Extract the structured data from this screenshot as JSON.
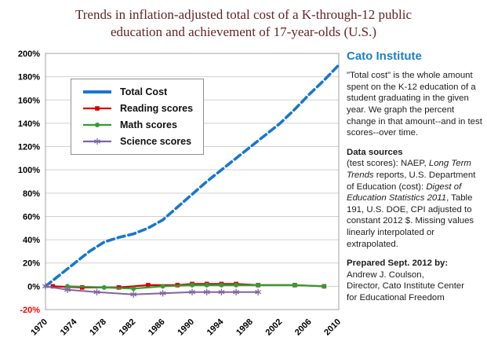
{
  "title": {
    "line1": "Trends in inflation-adjusted total cost of a K-through-12 public",
    "line2": "education and achievement of 17-year-olds  (U.S.)"
  },
  "sidebar": {
    "heading": "Cato Institute",
    "intro": "\"Total cost\" is the whole amount spent on the K-12 education of a student graduating in the given year. We graph the percent change in that amount--and in test scores--over time.",
    "data_sources_label": "Data sources",
    "data_sources_segments": [
      {
        "text": "(test scores): NAEP, ",
        "italic": false
      },
      {
        "text": "Long Term Trends",
        "italic": true
      },
      {
        "text": " reports, U.S. Department of Education (cost): ",
        "italic": false
      },
      {
        "text": "Digest of Education Statistics 2011",
        "italic": true
      },
      {
        "text": ", Table 191, U.S. DOE, CPI adjusted to constant 2012 $.  Missing values linearly interpolated or extrapolated.",
        "italic": false
      }
    ],
    "prepared_label": "Prepared Sept. 2012 by:",
    "prepared_lines": [
      "Andrew J. Coulson,",
      "Director, Cato Institute Center",
      "for Educational Freedom"
    ]
  },
  "chart_data": {
    "type": "line",
    "title": "Trends in inflation-adjusted total cost of a K-through-12 public education and achievement of 17-year-olds (U.S.)",
    "xlabel": "",
    "ylabel": "",
    "xlim": [
      1970,
      2010
    ],
    "ylim": [
      -20,
      200
    ],
    "x_ticks": [
      1970,
      1974,
      1978,
      1982,
      1986,
      1990,
      1994,
      1998,
      2002,
      2006,
      2010
    ],
    "y_ticks": [
      -20,
      0,
      20,
      40,
      60,
      80,
      100,
      120,
      140,
      160,
      180,
      200
    ],
    "y_tick_format": "percent",
    "grid": true,
    "legend_position": "upper-left",
    "negative_tick_color": "#ff0000",
    "series": [
      {
        "name": "Total Cost",
        "color": "#1876d2",
        "marker": "none",
        "dash": "9 5",
        "line_width": 3.6,
        "x": [
          1970,
          1972,
          1974,
          1976,
          1978,
          1980,
          1982,
          1984,
          1986,
          1988,
          1990,
          1992,
          1994,
          1996,
          1998,
          2000,
          2002,
          2004,
          2006,
          2008,
          2010
        ],
        "values": [
          0,
          10,
          20,
          30,
          38,
          42,
          45,
          50,
          57,
          68,
          79,
          90,
          100,
          110,
          120,
          130,
          140,
          152,
          165,
          177,
          190
        ]
      },
      {
        "name": "Reading scores",
        "color": "#d40000",
        "marker": "square",
        "dash": null,
        "line_width": 2.2,
        "x": [
          1971,
          1975,
          1980,
          1984,
          1988,
          1990,
          1992,
          1994,
          1996,
          1999,
          2004,
          2008
        ],
        "values": [
          0,
          -1,
          -1,
          1,
          1,
          2,
          2,
          2,
          2,
          1,
          1,
          0
        ]
      },
      {
        "name": "Math scores",
        "color": "#2fa02f",
        "marker": "circle",
        "dash": null,
        "line_width": 2.2,
        "x": [
          1973,
          1978,
          1982,
          1986,
          1990,
          1992,
          1994,
          1996,
          1999,
          2004,
          2008
        ],
        "values": [
          0,
          -1,
          -2,
          0,
          1,
          1,
          1,
          1,
          1,
          1,
          0
        ]
      },
      {
        "name": "Science scores",
        "color": "#8064a2",
        "marker": "star",
        "dash": null,
        "line_width": 2.0,
        "x": [
          1970,
          1973,
          1977,
          1982,
          1986,
          1990,
          1992,
          1994,
          1996,
          1999
        ],
        "values": [
          0,
          -3,
          -5,
          -7,
          -6,
          -5,
          -5,
          -5,
          -5,
          -5
        ]
      }
    ]
  }
}
